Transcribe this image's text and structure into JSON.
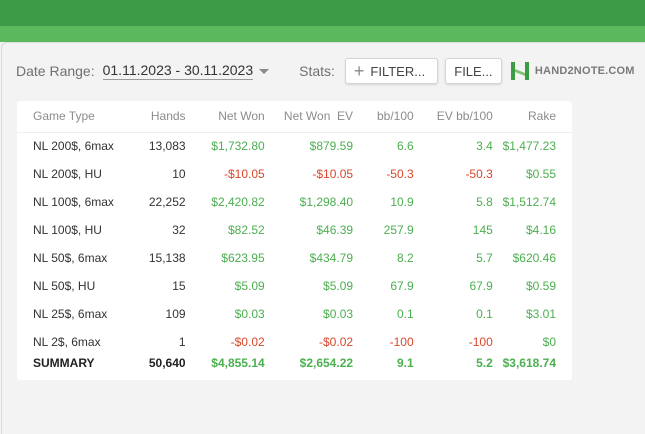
{
  "toolbar": {
    "date_range_label": "Date Range:",
    "date_range_value": "01.11.2023 - 30.11.2023",
    "stats_label": "Stats:",
    "filter_label": "FILTER...",
    "file_label": "FILE...",
    "logo_text": "HAND2NOTE.COM"
  },
  "colors": {
    "positive": "#4caf50",
    "negative": "#d9472b",
    "brand": "#3d9a46"
  },
  "table": {
    "headers": [
      "Game Type",
      "Hands",
      "Net Won",
      "Net Won  EV",
      "bb/100",
      "EV bb/100",
      "Rake"
    ],
    "rows": [
      [
        "NL 200$, 6max",
        "13,083",
        "$1,732.80",
        "$879.59",
        "6.6",
        "3.4",
        "$1,477.23"
      ],
      [
        "NL 200$, HU",
        "10",
        "-$10.05",
        "-$10.05",
        "-50.3",
        "-50.3",
        "$0.55"
      ],
      [
        "NL 100$, 6max",
        "22,252",
        "$2,420.82",
        "$1,298.40",
        "10.9",
        "5.8",
        "$1,512.74"
      ],
      [
        "NL 100$, HU",
        "32",
        "$82.52",
        "$46.39",
        "257.9",
        "145",
        "$4.16"
      ],
      [
        "NL 50$, 6max",
        "15,138",
        "$623.95",
        "$434.79",
        "8.2",
        "5.7",
        "$620.46"
      ],
      [
        "NL 50$, HU",
        "15",
        "$5.09",
        "$5.09",
        "67.9",
        "67.9",
        "$0.59"
      ],
      [
        "NL 25$, 6max",
        "109",
        "$0.03",
        "$0.03",
        "0.1",
        "0.1",
        "$3.01"
      ],
      [
        "NL 2$, 6max",
        "1",
        "-$0.02",
        "-$0.02",
        "-100",
        "-100",
        "$0"
      ]
    ],
    "summary": [
      "SUMMARY",
      "50,640",
      "$4,855.14",
      "$2,654.22",
      "9.1",
      "5.2",
      "$3,618.74"
    ]
  }
}
